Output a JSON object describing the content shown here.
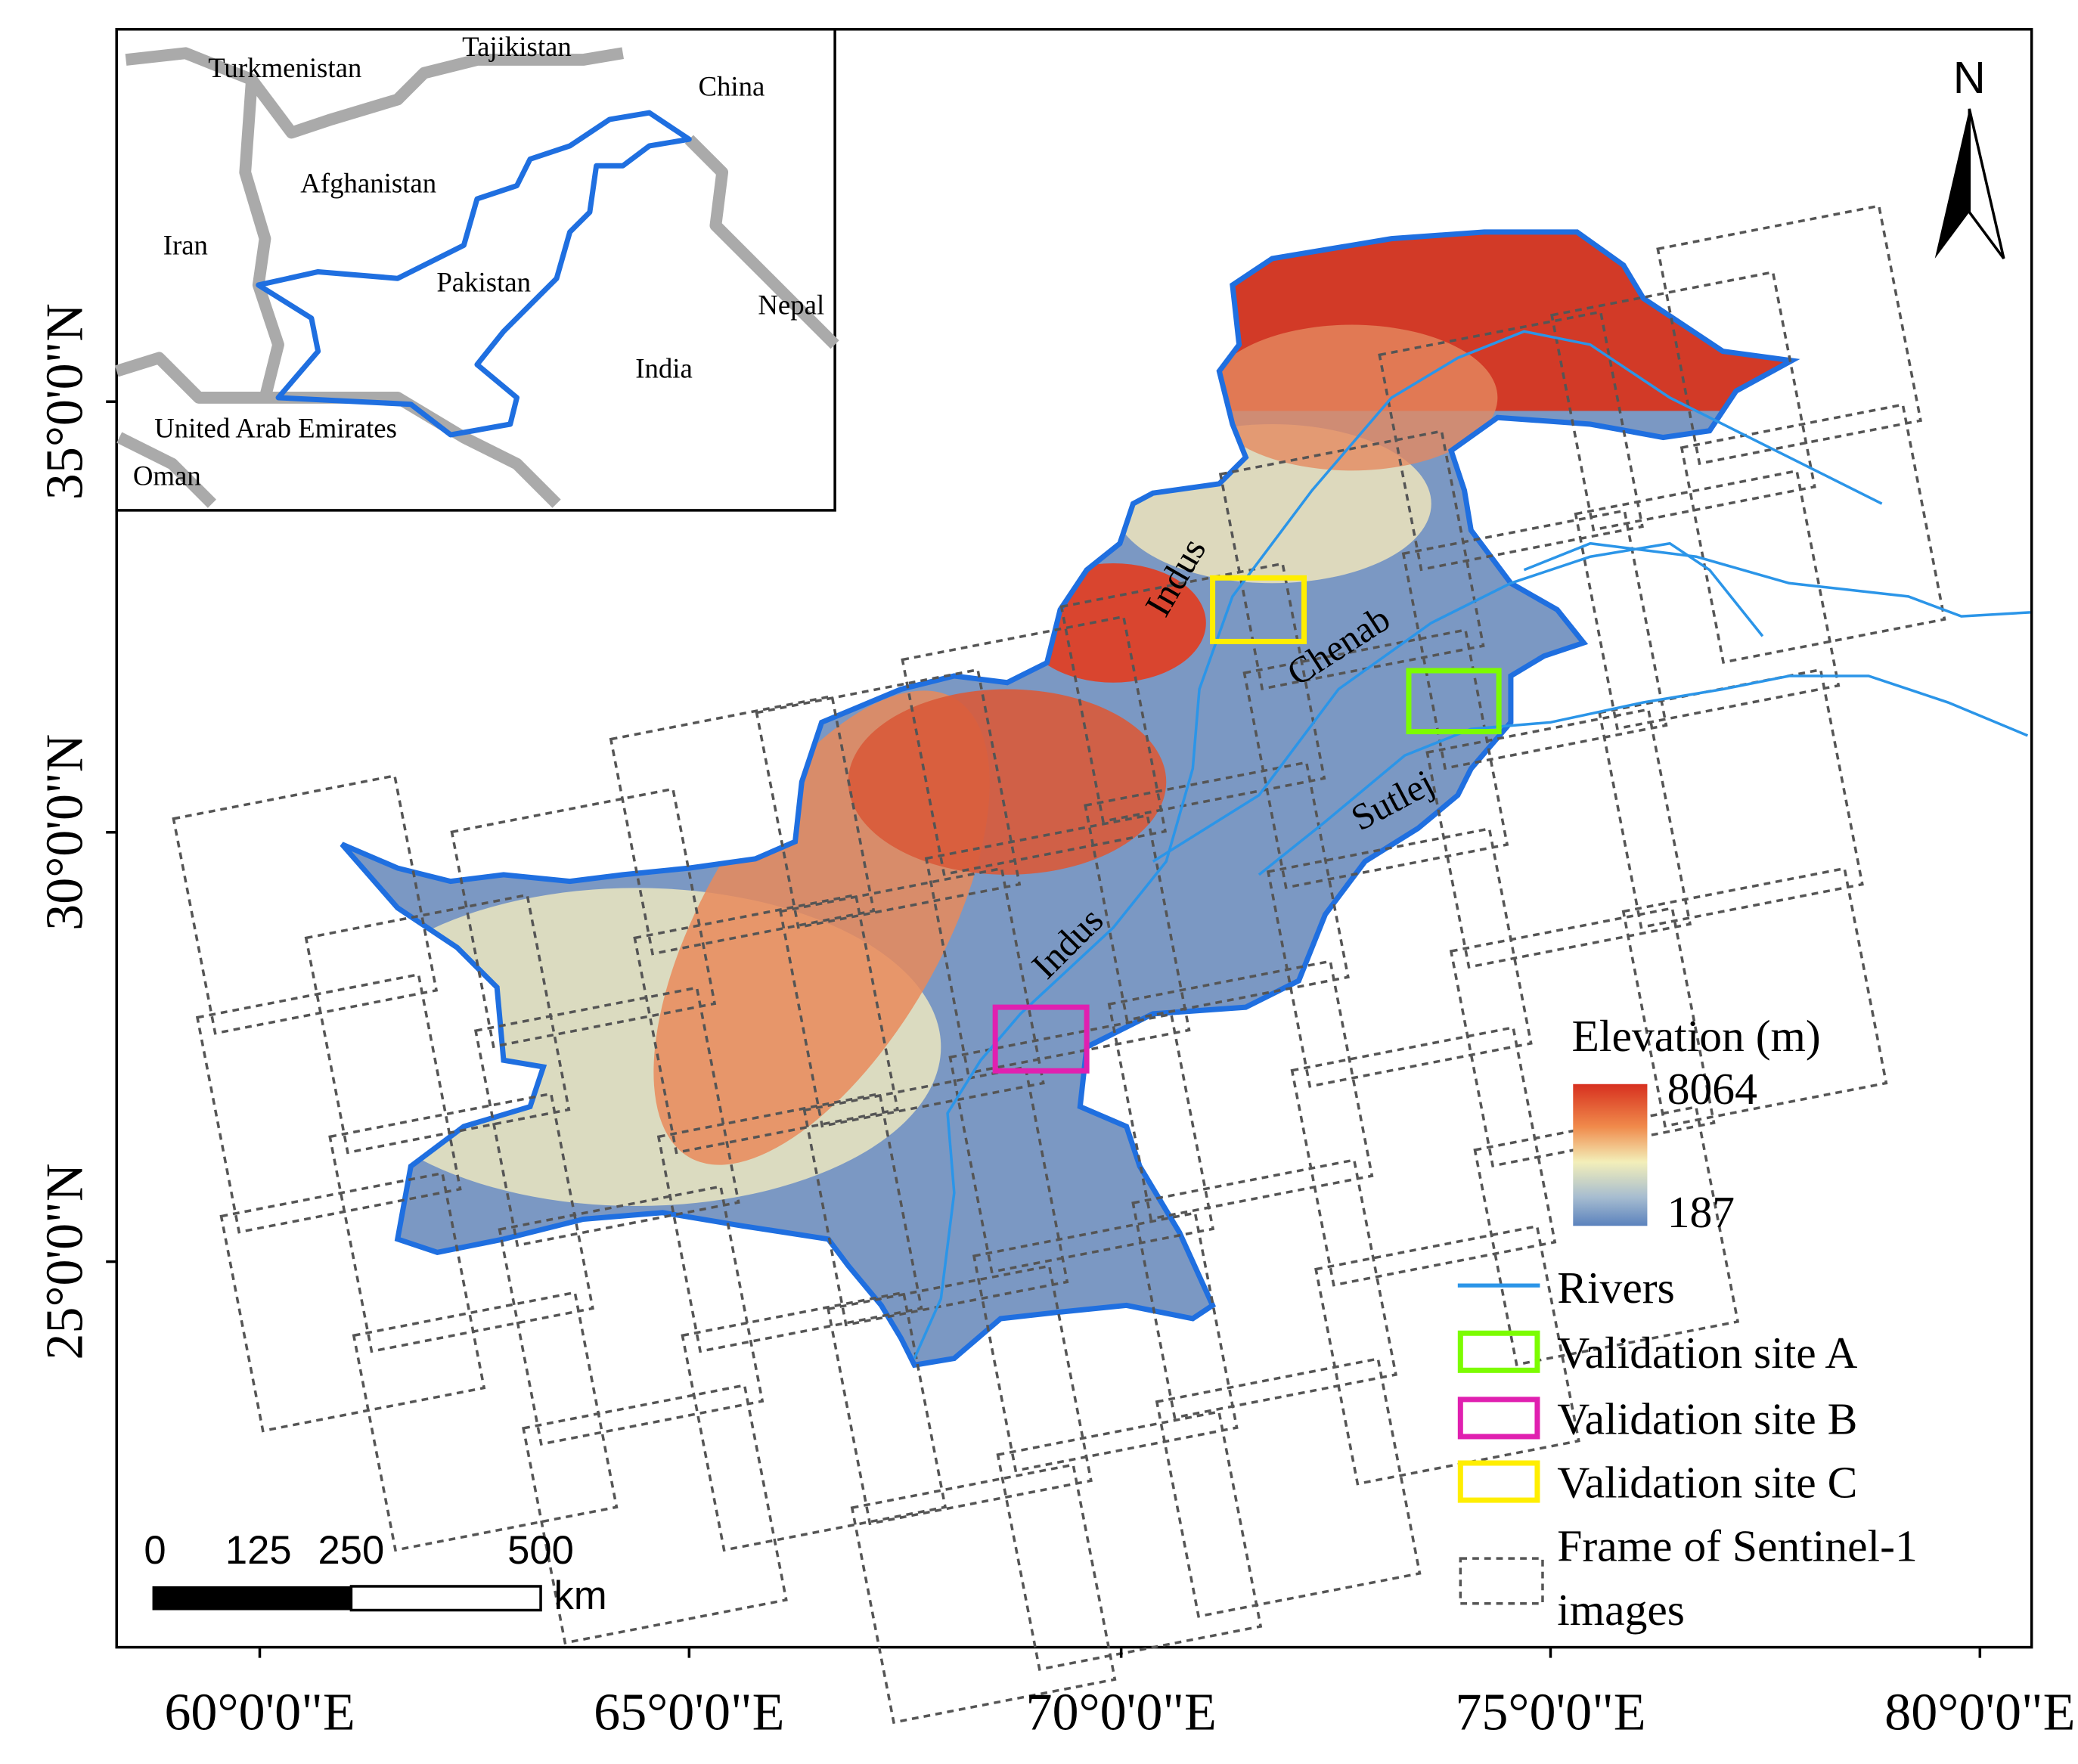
{
  "inset": {
    "labels": [
      "Turkmenistan",
      "Tajikistan",
      "China",
      "Afghanistan",
      "Iran",
      "Pakistan",
      "Nepal",
      "India",
      "United Arab Emirates",
      "Oman"
    ]
  },
  "north": "N",
  "rivers": [
    "Indus",
    "Chenab",
    "Sutlej",
    "Indus"
  ],
  "legend": {
    "elevation_title": "Elevation (m)",
    "elevation_max": 8064,
    "elevation_min": 187,
    "items": [
      "Rivers",
      "Validation site A",
      "Validation site B",
      "Validation site C",
      "Frame of Sentinel-1",
      "images"
    ]
  },
  "scale_bar": {
    "labels": [
      0,
      125,
      250,
      500
    ],
    "unit": "km"
  },
  "axes": {
    "latitude": [
      "35°0'0\"N",
      "30°0'0\"N",
      "25°0'0\"N"
    ],
    "longitude": [
      "60°0'0\"E",
      "65°0'0\"E",
      "70°0'0\"E",
      "75°0'0\"E",
      "80°0'0\"E"
    ]
  }
}
